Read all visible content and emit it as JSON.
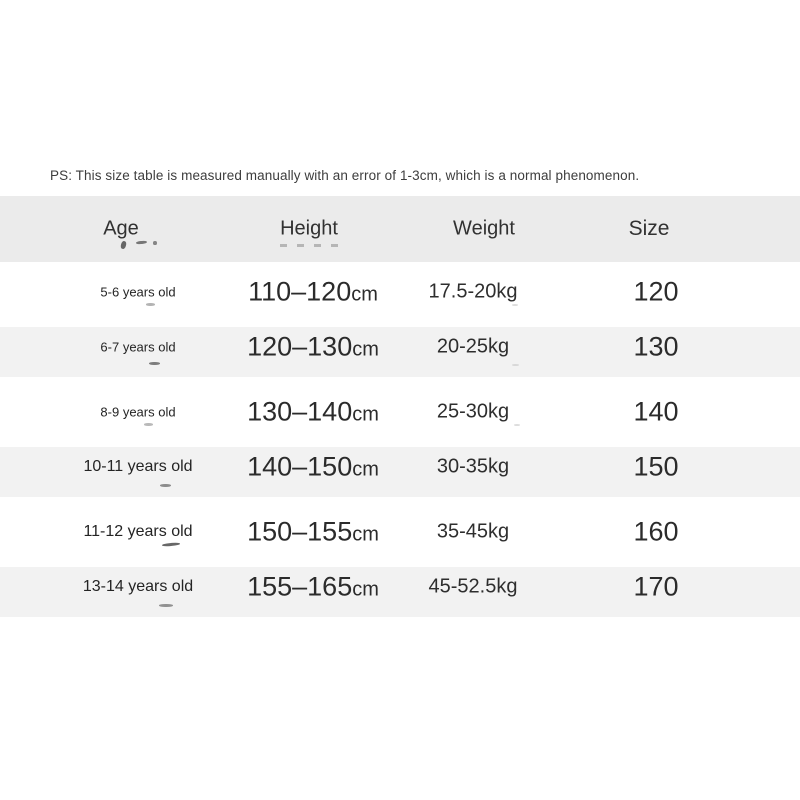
{
  "note": "PS: This size table is measured manually with an error of 1-3cm, which is a normal phenomenon.",
  "table": {
    "headers": {
      "age": "Age",
      "height": "Height",
      "weight": "Weight",
      "size": "Size"
    },
    "rows": [
      {
        "age": "5-6 years old",
        "height_range": "110–120",
        "height_unit": "cm",
        "weight": "17.5-20kg",
        "size": "120"
      },
      {
        "age": "6-7 years old",
        "height_range": "120–130",
        "height_unit": "cm",
        "weight": "20-25kg",
        "size": "130"
      },
      {
        "age": "8-9 years old",
        "height_range": "130–140",
        "height_unit": "cm",
        "weight": "25-30kg",
        "size": "140"
      },
      {
        "age": "10-11 years old",
        "height_range": "140–150",
        "height_unit": "cm",
        "weight": "30-35kg",
        "size": "150"
      },
      {
        "age": "11-12 years old",
        "height_range": "150–155",
        "height_unit": "cm",
        "weight": "35-45kg",
        "size": "160"
      },
      {
        "age": "13-14 years old",
        "height_range": "155–165",
        "height_unit": "cm",
        "weight": "45-52.5kg",
        "size": "170"
      }
    ]
  },
  "colors": {
    "header_bg": "#ebebeb",
    "shaded_row_bg": "#f2f2f2",
    "text": "#2c2c2c",
    "note_text": "#3d3d3d"
  },
  "chart_data": {
    "type": "table",
    "title": "Children size chart",
    "columns": [
      "Age",
      "Height",
      "Weight",
      "Size"
    ],
    "rows": [
      [
        "5-6 years old",
        "110-120cm",
        "17.5-20kg",
        "120"
      ],
      [
        "6-7 years old",
        "120-130cm",
        "20-25kg",
        "130"
      ],
      [
        "8-9 years old",
        "130-140cm",
        "25-30kg",
        "140"
      ],
      [
        "10-11 years old",
        "140-150cm",
        "30-35kg",
        "150"
      ],
      [
        "11-12 years old",
        "150-155cm",
        "35-45kg",
        "160"
      ],
      [
        "13-14 years old",
        "155-165cm",
        "45-52.5kg",
        "170"
      ]
    ],
    "note": "PS: This size table is measured manually with an error of 1-3cm, which is a normal phenomenon.",
    "layout_hints": {
      "header_shaded": true,
      "alternating_rows_shaded": [
        2,
        4,
        6
      ],
      "grid": false
    }
  }
}
